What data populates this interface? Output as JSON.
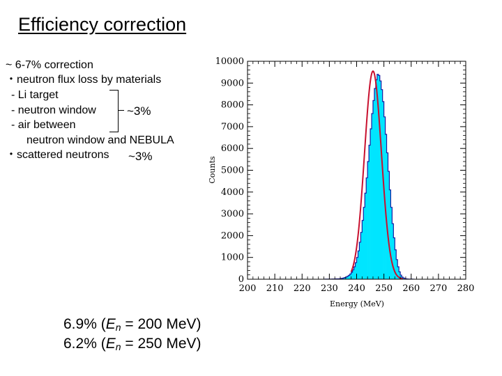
{
  "slide": {
    "title": "Efficiency correction",
    "bullets": [
      "~ 6-7% correction",
      "・neutron flux loss by materials",
      "- Li target",
      "- neutron window",
      "- air between",
      "neutron window and NEBULA",
      "・scattered neutrons"
    ],
    "bracket_note": "~3%",
    "scattered_note": "~3%",
    "efficiencies": [
      {
        "value": "6.9% (",
        "var": "E",
        "sub": "n",
        "rest": " = 200 MeV)"
      },
      {
        "value": "6.2% (",
        "var": "E",
        "sub": "n",
        "rest": " = 250 MeV)"
      }
    ]
  },
  "chart_data": {
    "type": "histogram",
    "title": "",
    "xlabel": "Energy (MeV)",
    "ylabel": "Counts",
    "xlim": [
      200,
      280
    ],
    "ylim": [
      0,
      10000
    ],
    "xticks": [
      "200",
      "210",
      "220",
      "230",
      "240",
      "250",
      "260",
      "270",
      "280"
    ],
    "yticks": [
      "0",
      "1000",
      "2000",
      "3000",
      "4000",
      "5000",
      "6000",
      "7000",
      "8000",
      "9000",
      "10000"
    ],
    "grid": false,
    "bin_width": 0.5,
    "bin_start": 228,
    "counts": [
      2,
      3,
      3,
      4,
      5,
      6,
      8,
      10,
      12,
      15,
      18,
      22,
      30,
      40,
      55,
      75,
      100,
      135,
      180,
      240,
      320,
      430,
      570,
      760,
      1000,
      1300,
      1700,
      2150,
      2700,
      3300,
      3950,
      4650,
      5400,
      6150,
      6900,
      7600,
      8200,
      8750,
      9150,
      9400,
      9350,
      9100,
      8700,
      8150,
      7450,
      6650,
      5800,
      4950,
      4100,
      3300,
      2550,
      1900,
      1350,
      900,
      570,
      340,
      190,
      100,
      55,
      30,
      18,
      10,
      6,
      4,
      3,
      2
    ],
    "fit": {
      "type": "gaussian",
      "mean": 246.0,
      "sigma": 3.1,
      "amplitude": 9550,
      "range": [
        238,
        257
      ]
    },
    "colors": {
      "fill": "#00e5ff",
      "outline": "#1a1aa0",
      "fit": "#c8102e",
      "axis": "#000000"
    }
  }
}
